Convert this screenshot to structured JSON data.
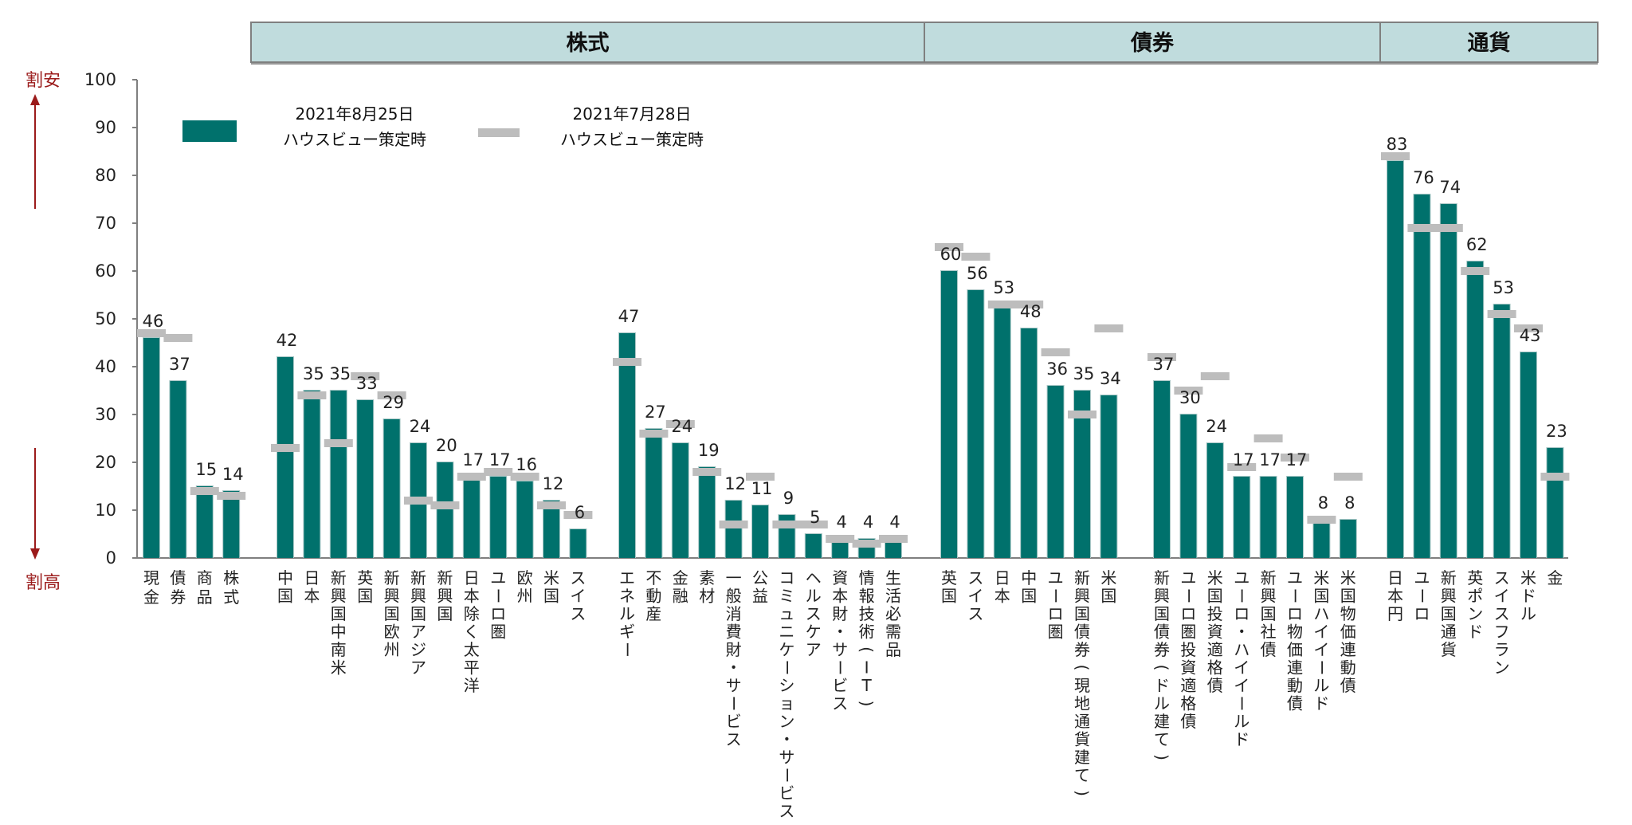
{
  "header": {
    "sections": [
      {
        "label": "株式",
        "first_group": 0,
        "last_group": 2
      },
      {
        "label": "債券",
        "first_group": 3,
        "last_group": 4
      },
      {
        "label": "通貨",
        "first_group": 5,
        "last_group": 5
      }
    ]
  },
  "axis_side_labels": {
    "top": "割安",
    "bottom": "割高"
  },
  "legend": [
    {
      "line1": "2021年8月25日",
      "line2": "ハウスビュー策定時",
      "kind": "bar",
      "color": "#00716c"
    },
    {
      "line1": "2021年7月28日",
      "line2": "ハウスビュー策定時",
      "kind": "marker",
      "color": "#bdbdbd"
    }
  ],
  "colors": {
    "bar": "#00716c",
    "bar_edge": "#a9c7c6",
    "marker": "#bdbdbd",
    "header_fill": "#c0dcdd",
    "header_border": "#7f7f7f",
    "arrow": "#9b1b1b",
    "axis": "#7f7f7f"
  },
  "chart_data": {
    "type": "bar",
    "title": "",
    "xlabel": "",
    "ylabel": "",
    "ylim": [
      0,
      100
    ],
    "yticks": [
      0,
      10,
      20,
      30,
      40,
      50,
      60,
      70,
      80,
      90,
      100
    ],
    "grid": false,
    "legend_position": "top-left",
    "series": [
      {
        "name": "2021年8月25日 ハウスビュー策定時",
        "kind": "bar"
      },
      {
        "name": "2021年7月28日 ハウスビュー策定時",
        "kind": "marker"
      }
    ],
    "groups": [
      {
        "section": "株式",
        "items": [
          {
            "label": "現金",
            "label_style": "stacked",
            "current": 46,
            "previous": 47
          },
          {
            "label": "債券",
            "label_style": "stacked",
            "current": 37,
            "previous": 46
          },
          {
            "label": "商品",
            "label_style": "stacked",
            "current": 15,
            "previous": 14
          },
          {
            "label": "株式",
            "label_style": "stacked",
            "current": 14,
            "previous": 13
          }
        ]
      },
      {
        "section": "株式",
        "items": [
          {
            "label": "中国",
            "current": 42,
            "previous": 23
          },
          {
            "label": "日本",
            "current": 35,
            "previous": 34
          },
          {
            "label": "新興国中南米",
            "current": 35,
            "previous": 24
          },
          {
            "label": "英国",
            "current": 33,
            "previous": 38
          },
          {
            "label": "新興国欧州",
            "current": 29,
            "previous": 34
          },
          {
            "label": "新興国アジア",
            "current": 24,
            "previous": 12
          },
          {
            "label": "新興国",
            "current": 20,
            "previous": 11
          },
          {
            "label": "日本除く太平洋",
            "current": 17,
            "previous": 17
          },
          {
            "label": "ユーロ圏",
            "current": 17,
            "previous": 18
          },
          {
            "label": "欧州",
            "current": 16,
            "previous": 17
          },
          {
            "label": "米国",
            "current": 12,
            "previous": 11
          },
          {
            "label": "スイス",
            "current": 6,
            "previous": 9
          }
        ]
      },
      {
        "section": "株式",
        "items": [
          {
            "label": "エネルギー",
            "current": 47,
            "previous": 41
          },
          {
            "label": "不動産",
            "current": 27,
            "previous": 26
          },
          {
            "label": "金融",
            "current": 24,
            "previous": 28
          },
          {
            "label": "素材",
            "current": 19,
            "previous": 18
          },
          {
            "label": "一般消費財・サービス",
            "current": 12,
            "previous": 7
          },
          {
            "label": "公益",
            "current": 11,
            "previous": 17
          },
          {
            "label": "コミュニケーション・サービス",
            "current": 9,
            "previous": 7
          },
          {
            "label": "ヘルスケア",
            "current": 5,
            "previous": 7
          },
          {
            "label": "資本財・サービス",
            "current": 4,
            "previous": 4
          },
          {
            "label": "情報技術(IT)",
            "current": 4,
            "previous": 3
          },
          {
            "label": "生活必需品",
            "current": 4,
            "previous": 4
          }
        ]
      },
      {
        "section": "債券",
        "items": [
          {
            "label": "英国",
            "current": 60,
            "previous": 65
          },
          {
            "label": "スイス",
            "current": 56,
            "previous": 63
          },
          {
            "label": "日本",
            "current": 53,
            "previous": 53
          },
          {
            "label": "中国",
            "current": 48,
            "previous": 53
          },
          {
            "label": "ユーロ圏",
            "current": 36,
            "previous": 43
          },
          {
            "label": "新興国債券(現地通貨建て)",
            "current": 35,
            "previous": 30
          },
          {
            "label": "米国",
            "current": 34,
            "previous": 48
          }
        ]
      },
      {
        "section": "債券",
        "items": [
          {
            "label": "新興国債券(ドル建て)",
            "current": 37,
            "previous": 42
          },
          {
            "label": "ユーロ圏投資適格債",
            "current": 30,
            "previous": 35
          },
          {
            "label": "米国投資適格債",
            "current": 24,
            "previous": 38
          },
          {
            "label": "ユーロ・ハイイールド",
            "current": 17,
            "previous": 19
          },
          {
            "label": "新興国社債",
            "current": 17,
            "previous": 25
          },
          {
            "label": "ユーロ物価連動債",
            "current": 17,
            "previous": 21
          },
          {
            "label": "米国ハイイールド",
            "current": 8,
            "previous": 8
          },
          {
            "label": "米国物価連動債",
            "current": 8,
            "previous": 17
          }
        ]
      },
      {
        "section": "通貨",
        "items": [
          {
            "label": "日本円",
            "current": 83,
            "previous": 84
          },
          {
            "label": "ユーロ",
            "current": 76,
            "previous": 69
          },
          {
            "label": "新興国通貨",
            "current": 74,
            "previous": 69
          },
          {
            "label": "英ポンド",
            "current": 62,
            "previous": 60
          },
          {
            "label": "スイスフラン",
            "current": 53,
            "previous": 51
          },
          {
            "label": "米ドル",
            "current": 43,
            "previous": 48
          },
          {
            "label": "金",
            "current": 23,
            "previous": 17
          }
        ]
      }
    ]
  }
}
